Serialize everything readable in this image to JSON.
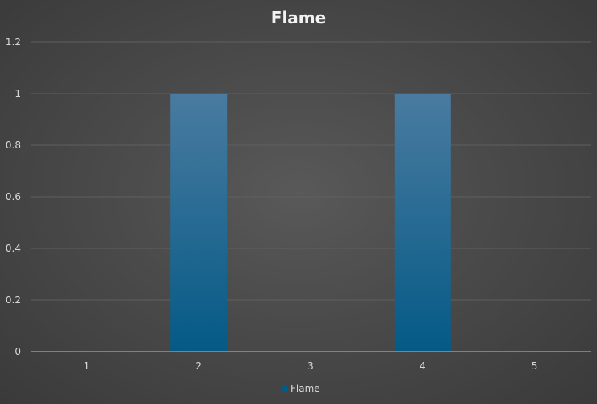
{
  "chart_data": {
    "type": "bar",
    "title": "Flame",
    "categories": [
      "1",
      "2",
      "3",
      "4",
      "5"
    ],
    "series": [
      {
        "name": "Flame",
        "values": [
          0,
          1,
          0,
          1,
          0
        ]
      }
    ],
    "ylim": [
      0,
      1.2
    ],
    "yticks": [
      "0",
      "0.2",
      "0.4",
      "0.6",
      "0.8",
      "1",
      "1.2"
    ],
    "grid": true,
    "legend": "bottom",
    "colors": {
      "bar_top": "#4a7ba0",
      "bar_bottom": "#045a86",
      "background": "#4a4a4a"
    }
  }
}
